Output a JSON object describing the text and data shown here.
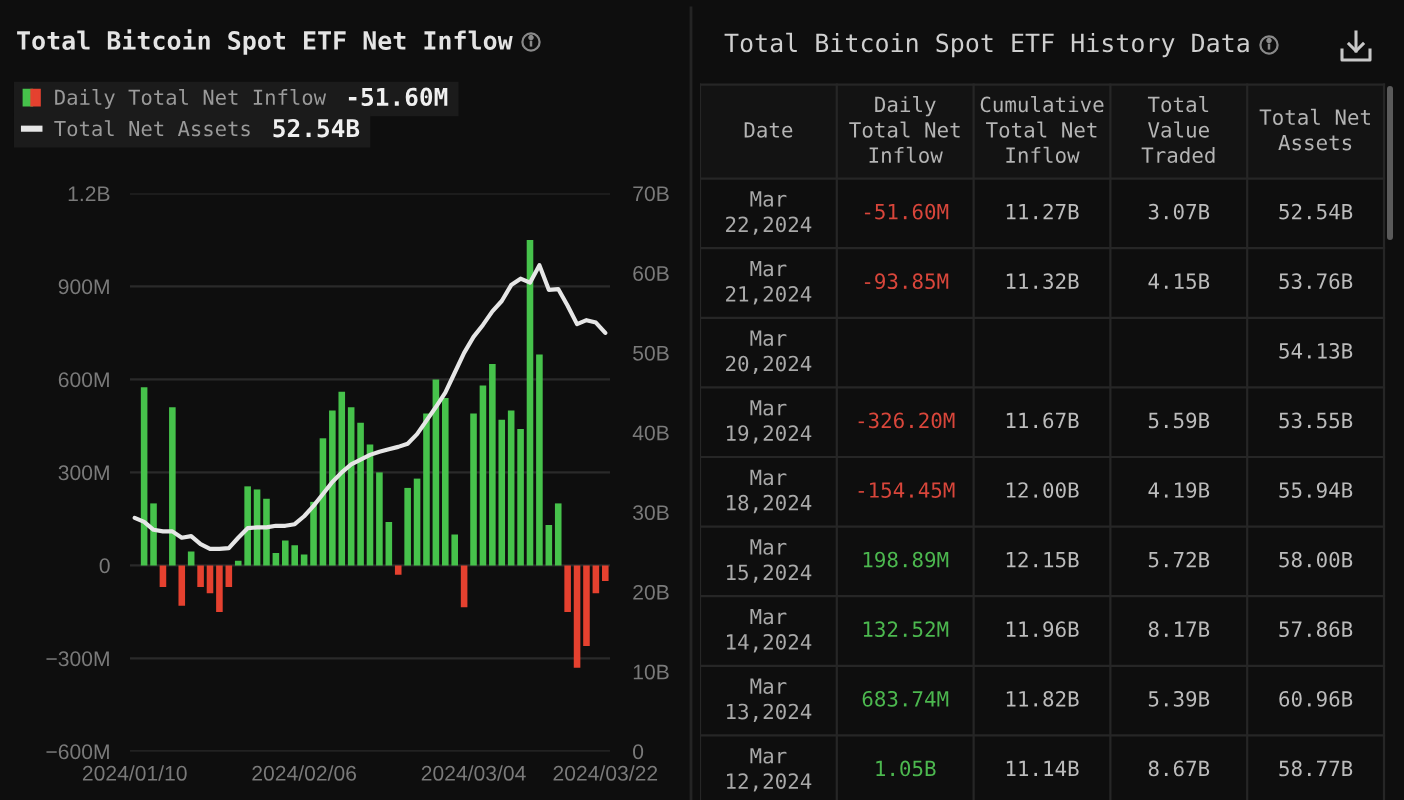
{
  "chart_data": [
    {
      "type": "bar",
      "title": "Total Bitcoin Spot ETF Net Inflow",
      "categories": [
        "2024/01/10",
        null,
        null,
        null,
        null,
        null,
        null,
        null,
        null,
        null,
        null,
        null,
        null,
        null,
        null,
        null,
        null,
        null,
        "2024/02/06",
        null,
        null,
        null,
        null,
        null,
        null,
        null,
        null,
        null,
        null,
        null,
        null,
        null,
        null,
        null,
        null,
        null,
        "2024/03/04",
        null,
        null,
        null,
        null,
        null,
        null,
        null,
        null,
        null,
        null,
        null,
        null,
        null,
        "2024/03/22"
      ],
      "series": [
        {
          "name": "Daily Total Net Inflow",
          "type": "bar",
          "values": [
            null,
            575000000,
            200000000,
            -70000000,
            510000000,
            -130000000,
            45000000,
            -70000000,
            -90000000,
            -150000000,
            -70000000,
            15000000,
            255000000,
            245000000,
            215000000,
            40000000,
            80000000,
            65000000,
            35000000,
            205000000,
            410000000,
            500000000,
            560000000,
            510000000,
            460000000,
            390000000,
            300000000,
            140000000,
            -30000000,
            250000000,
            280000000,
            490000000,
            600000000,
            540000000,
            100000000,
            -135000000,
            490000000,
            580000000,
            650000000,
            470000000,
            500000000,
            440000000,
            1050000000,
            680000000,
            130000000,
            200000000,
            -150000000,
            -330000000,
            -260000000,
            -90000000,
            -50000000
          ],
          "colors": [
            "#46c24b",
            "#46c24b",
            "#46c24b",
            "#e5412f",
            "#46c24b",
            "#e5412f",
            "#46c24b",
            "#e5412f",
            "#e5412f",
            "#e5412f",
            "#e5412f",
            "#46c24b",
            "#46c24b",
            "#46c24b",
            "#46c24b",
            "#46c24b",
            "#46c24b",
            "#46c24b",
            "#46c24b",
            "#46c24b",
            "#46c24b",
            "#46c24b",
            "#46c24b",
            "#46c24b",
            "#46c24b",
            "#46c24b",
            "#46c24b",
            "#46c24b",
            "#e5412f",
            "#46c24b",
            "#46c24b",
            "#46c24b",
            "#46c24b",
            "#46c24b",
            "#46c24b",
            "#e5412f",
            "#46c24b",
            "#46c24b",
            "#46c24b",
            "#46c24b",
            "#46c24b",
            "#46c24b",
            "#46c24b",
            "#46c24b",
            "#46c24b",
            "#46c24b",
            "#e5412f",
            "#e5412f",
            "#e5412f",
            "#e5412f",
            "#e5412f"
          ]
        },
        {
          "name": "Total Net Assets",
          "type": "line",
          "axis": "y2",
          "color": "#e6e6e6",
          "values": [
            29300000000,
            28800000000,
            27800000000,
            27600000000,
            27600000000,
            26800000000,
            27000000000,
            26000000000,
            25400000000,
            25400000000,
            25500000000,
            26800000000,
            28000000000,
            28100000000,
            28100000000,
            28300000000,
            28300000000,
            28500000000,
            29500000000,
            30800000000,
            32300000000,
            33800000000,
            35000000000,
            36000000000,
            36600000000,
            37200000000,
            37600000000,
            37900000000,
            38200000000,
            38600000000,
            39800000000,
            41500000000,
            43200000000,
            45000000000,
            47500000000,
            50000000000,
            52000000000,
            53500000000,
            55200000000,
            56500000000,
            58500000000,
            59300000000,
            58800000000,
            61000000000,
            57900000000,
            58000000000,
            55900000000,
            53600000000,
            54100000000,
            53800000000,
            52500000000
          ]
        }
      ],
      "ylim": [
        -600000000,
        1200000000
      ],
      "yticks": [
        {
          "value": -600000000,
          "label": "−600M"
        },
        {
          "value": -300000000,
          "label": "−300M"
        },
        0,
        {
          "value": 300000000,
          "label": "300M"
        },
        {
          "value": 600000000,
          "label": "600M"
        },
        {
          "value": 900000000,
          "label": "900M"
        },
        {
          "value": 1200000000,
          "label": "1.2B"
        }
      ],
      "y2lim": [
        0,
        70000000000
      ],
      "y2ticks": [
        0,
        {
          "value": 10000000000,
          "label": "10B"
        },
        {
          "value": 20000000000,
          "label": "20B"
        },
        {
          "value": 30000000000,
          "label": "30B"
        },
        {
          "value": 40000000000,
          "label": "40B"
        },
        {
          "value": 50000000000,
          "label": "50B"
        },
        {
          "value": 60000000000,
          "label": "60B"
        },
        {
          "value": 70000000000,
          "label": "70B"
        }
      ],
      "grid": "y",
      "legend": "top left",
      "annotations": [
        "-51.60M",
        "52.54B"
      ]
    },
    {
      "type": "other",
      "title": "Total Bitcoin Spot ETF History Data",
      "categories": [
        "Date",
        "Daily Total Net Inflow",
        "Cumulative Total Net Inflow",
        "Total Value Traded",
        "Total Net Assets"
      ],
      "y_categories": [
        "Mar 22,2024",
        "Mar 21,2024",
        "Mar 20,2024",
        "Mar 19,2024",
        "Mar 18,2024",
        "Mar 15,2024",
        "Mar 14,2024",
        "Mar 13,2024",
        "Mar 12,2024"
      ],
      "cell_labels": [
        [
          "-51.60M",
          "11.27B",
          "3.07B",
          "52.54B"
        ],
        [
          "-93.85M",
          "11.32B",
          "4.15B",
          "53.76B"
        ],
        [
          null,
          null,
          null,
          "54.13B"
        ],
        [
          "-326.20M",
          "11.67B",
          "5.59B",
          "53.55B"
        ],
        [
          "-154.45M",
          "12.00B",
          "4.19B",
          "55.94B"
        ],
        [
          "198.89M",
          "12.15B",
          "5.72B",
          "58.00B"
        ],
        [
          "132.52M",
          "11.96B",
          "8.17B",
          "57.86B"
        ],
        [
          "683.74M",
          "11.82B",
          "5.39B",
          "60.96B"
        ],
        [
          "1.05B",
          "11.14B",
          "8.67B",
          "58.77B"
        ]
      ],
      "colors": [
        "#d9463b",
        "#d9463b",
        "#d9463b",
        "#d9463b",
        "#d9463b",
        "#4cb84f",
        "#4cb84f",
        "#4cb84f",
        "#4cb84f"
      ]
    }
  ]
}
